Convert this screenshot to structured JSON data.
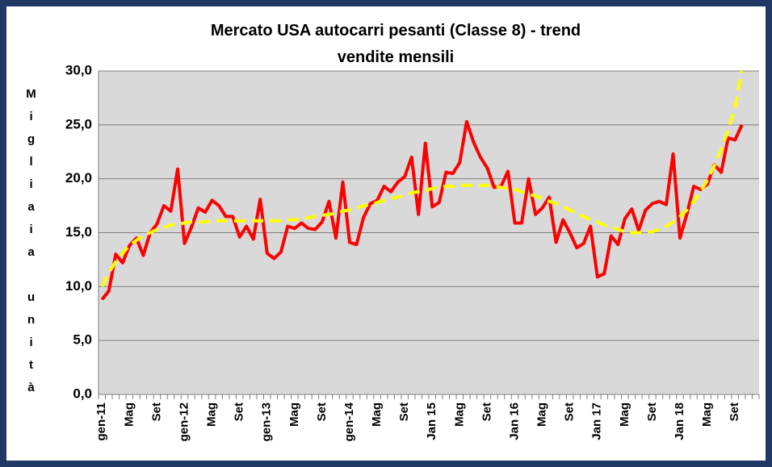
{
  "chart_data": {
    "type": "line",
    "title": "Mercato USA autocarri pesanti (Classe 8) - trend vendite mensili",
    "y_label": "Migliaia unità",
    "categories": [
      "gen-11",
      null,
      null,
      null,
      "Mag",
      null,
      null,
      null,
      "Set",
      null,
      null,
      null,
      "gen-12",
      null,
      null,
      null,
      "Mag",
      null,
      null,
      null,
      "Set",
      null,
      null,
      null,
      "gen-13",
      null,
      null,
      null,
      "Mag",
      null,
      null,
      null,
      "Set",
      null,
      null,
      null,
      "gen-14",
      null,
      null,
      null,
      "Mag",
      null,
      null,
      null,
      "Set",
      null,
      null,
      null,
      "Jan 15",
      null,
      null,
      null,
      "Mag",
      null,
      null,
      null,
      "Set",
      null,
      null,
      null,
      "Jan 16",
      null,
      null,
      null,
      "Mag",
      null,
      null,
      null,
      "Set",
      null,
      null,
      null,
      "Jan 17",
      null,
      null,
      null,
      "Mag",
      null,
      null,
      null,
      "Set",
      null,
      null,
      null,
      "Jan 18",
      null,
      null,
      null,
      "Mag",
      null,
      null,
      null,
      "Set",
      null,
      null,
      null
    ],
    "series": [
      {
        "color": "#ff0000",
        "dash": false,
        "values": [
          8.8,
          9.6,
          13.0,
          12.2,
          13.8,
          14.5,
          12.9,
          15.0,
          15.8,
          17.5,
          17.0,
          20.9,
          14.0,
          15.5,
          17.3,
          16.9,
          18.0,
          17.5,
          16.5,
          16.5,
          14.6,
          15.6,
          14.4,
          18.1,
          13.1,
          12.6,
          13.2,
          15.6,
          15.4,
          15.9,
          15.4,
          15.3,
          16.0,
          17.9,
          14.5,
          19.7,
          14.1,
          13.9,
          16.4,
          17.7,
          18.0,
          19.3,
          18.8,
          19.7,
          20.2,
          22.0,
          16.7,
          23.3,
          17.4,
          17.8,
          20.6,
          20.5,
          21.5,
          25.3,
          23.4,
          22.0,
          21.0,
          19.2,
          19.3,
          20.7,
          15.9,
          15.9,
          20.0,
          16.7,
          17.3,
          18.3,
          14.1,
          16.2,
          15.0,
          13.6,
          14.0,
          15.6,
          10.9,
          11.2,
          14.7,
          13.9,
          16.3,
          17.2,
          15.2,
          17.1,
          17.7,
          17.9,
          17.6,
          22.3,
          14.5,
          16.7,
          19.3,
          19.0,
          19.5,
          21.3,
          20.6,
          23.8,
          23.6,
          25.0,
          null,
          null
        ]
      },
      {
        "color": "#ffff00",
        "dash": true,
        "values": [
          10.0,
          11.3,
          12.3,
          13.1,
          13.8,
          14.3,
          14.7,
          15.0,
          15.3,
          15.5,
          15.7,
          15.8,
          15.9,
          16.0,
          16.0,
          16.0,
          16.1,
          16.1,
          16.1,
          16.1,
          16.1,
          16.1,
          16.1,
          16.1,
          16.1,
          16.1,
          16.1,
          16.2,
          16.2,
          16.3,
          16.4,
          16.5,
          16.6,
          16.7,
          16.8,
          17.0,
          17.1,
          17.3,
          17.5,
          17.6,
          17.8,
          18.0,
          18.2,
          18.3,
          18.5,
          18.7,
          18.8,
          18.9,
          19.1,
          19.2,
          19.3,
          19.3,
          19.4,
          19.4,
          19.4,
          19.4,
          19.4,
          19.3,
          19.2,
          19.1,
          19.0,
          18.8,
          18.6,
          18.4,
          18.2,
          17.9,
          17.7,
          17.4,
          17.1,
          16.8,
          16.5,
          16.2,
          16.0,
          15.7,
          15.5,
          15.3,
          15.1,
          15.0,
          15.0,
          15.0,
          15.1,
          15.3,
          15.6,
          16.0,
          16.5,
          17.1,
          17.9,
          18.8,
          19.9,
          21.2,
          22.7,
          24.5,
          26.6,
          30.0,
          null,
          null
        ]
      }
    ],
    "ylim": [
      0,
      30
    ],
    "yticks": [
      {
        "value": 0,
        "label": "0,0"
      },
      {
        "value": 5,
        "label": "5,0"
      },
      {
        "value": 10,
        "label": "10,0"
      },
      {
        "value": 15,
        "label": "15,0"
      },
      {
        "value": 20,
        "label": "20,0"
      },
      {
        "value": 25,
        "label": "25,0"
      },
      {
        "value": 30,
        "label": "30,0"
      }
    ],
    "grid": true,
    "background": "#d9d9d9"
  }
}
